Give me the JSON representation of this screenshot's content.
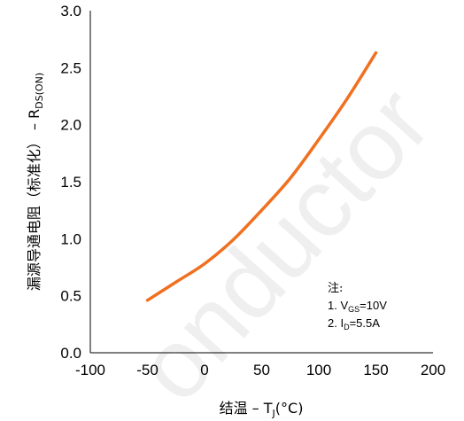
{
  "chart_data": {
    "type": "line",
    "x": [
      -50,
      -25,
      0,
      25,
      50,
      75,
      100,
      125,
      150
    ],
    "series": [
      {
        "color": "#f07020",
        "values": [
          0.46,
          0.62,
          0.78,
          0.99,
          1.25,
          1.53,
          1.87,
          2.23,
          2.63
        ]
      }
    ],
    "xlim": [
      -100,
      200
    ],
    "ylim": [
      0,
      3
    ],
    "xticks": [
      -100,
      -50,
      0,
      50,
      100,
      150,
      200
    ],
    "yticks": [
      0,
      0.5,
      1,
      1.5,
      2,
      2.5,
      3
    ],
    "xtick_labels": [
      "-100",
      "-50",
      "0",
      "50",
      "100",
      "150",
      "200"
    ],
    "ytick_labels": [
      "0.0",
      "0.5",
      "1.0",
      "1.5",
      "2.0",
      "2.5",
      "3.0"
    ],
    "xlabel": {
      "cjk": "结温",
      "sep": " – ",
      "main": "T",
      "sub": "J",
      "unit": "(°C)"
    },
    "ylabel": {
      "cjk": "漏源导通电阻（标准化）",
      "sep": " – ",
      "main": "R",
      "sub": "DS(ON)"
    },
    "grid": false,
    "annotation": {
      "title": "注:",
      "line1": {
        "prefix": "1. V",
        "sub": "GS",
        "suffix": "=10V"
      },
      "line2": {
        "prefix": "2. I",
        "sub": "D",
        "suffix": "=5.5A"
      }
    },
    "watermark": "onductor"
  }
}
